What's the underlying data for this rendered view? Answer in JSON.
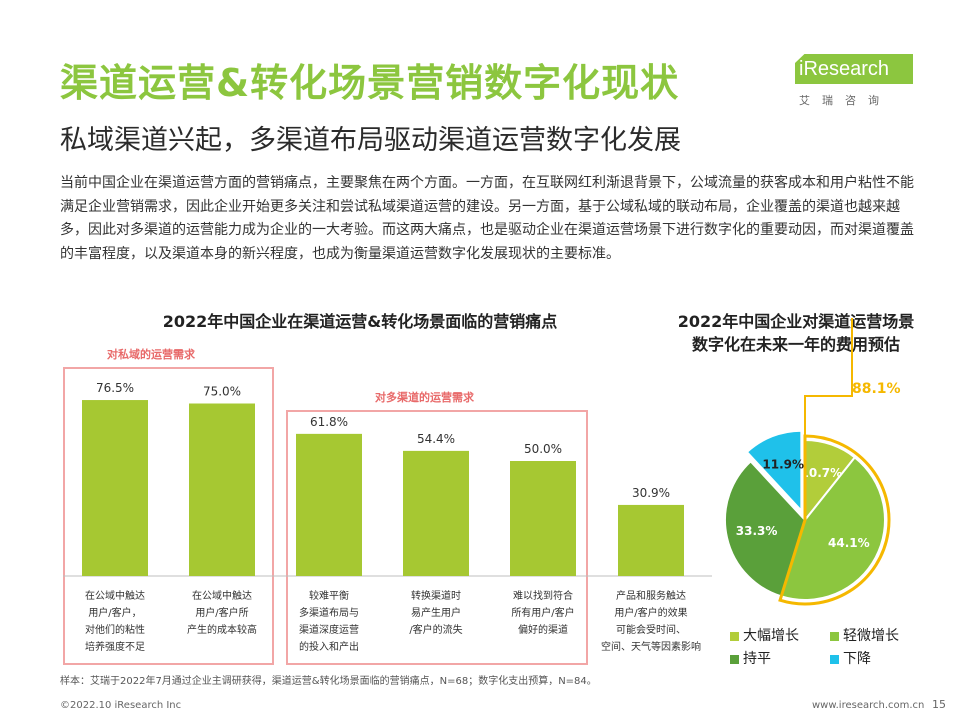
{
  "header": {
    "title": "渠道运营&转化场景营销数字化现状",
    "subtitle": "私域渠道兴起，多渠道布局驱动渠道运营数字化发展",
    "logo_text": "iResearch",
    "logo_cn": "艾瑞咨询"
  },
  "paragraph": "当前中国企业在渠道运营方面的营销痛点，主要聚焦在两个方面。一方面，在互联网红利渐退背景下，公域流量的获客成本和用户粘性不能满足企业营销需求，因此企业开始更多关注和尝试私域渠道运营的建设。另一方面，基于公域私域的联动布局，企业覆盖的渠道也越来越多，因此对多渠道的运营能力成为企业的一大考验。而这两大痛点，也是驱动企业在渠道运营场景下进行数字化的重要动因，而对渠道覆盖的丰富程度，以及渠道本身的新兴程度，也成为衡量渠道运营数字化发展现状的主要标准。",
  "chart_data": [
    {
      "type": "bar",
      "title": "2022年中国企业在渠道运营&转化场景面临的营销痛点",
      "categories": [
        "在公域中触达\n用户/客户，\n对他们的粘性\n培养强度不足",
        "在公域中触达\n用户/客户所\n产生的成本较高",
        "较难平衡\n多渠道布局与\n渠道深度运营\n的投入和产出",
        "转换渠道时\n易产生用户\n/客户的流失",
        "难以找到符合\n所有用户/客户\n偏好的渠道",
        "产品和服务触达\n用户/客户的效果\n可能会受时间、\n空间、天气等因素影响"
      ],
      "values": [
        76.5,
        75.0,
        61.8,
        54.4,
        50.0,
        30.9
      ],
      "value_labels": [
        "76.5%",
        "75.0%",
        "61.8%",
        "54.4%",
        "50.0%",
        "30.9%"
      ],
      "groups": [
        {
          "label": "对私域的运营需求",
          "members": [
            0,
            1
          ]
        },
        {
          "label": "对多渠道的运营需求",
          "members": [
            2,
            3,
            4
          ]
        }
      ],
      "ylim": [
        0,
        100
      ],
      "bar_color": "#a6c832"
    },
    {
      "type": "pie",
      "title": "2022年中国企业对渠道运营场景数字化在未来一年的费用预估",
      "slices": [
        {
          "name": "大幅增长",
          "value": 10.7,
          "label": "10.7%",
          "color": "#b2cd3a"
        },
        {
          "name": "轻微增长",
          "value": 44.1,
          "label": "44.1%",
          "color": "#8cc63f"
        },
        {
          "name": "持平",
          "value": 33.3,
          "label": "33.3%",
          "color": "#5aa03a"
        },
        {
          "name": "下降",
          "value": 11.9,
          "label": "11.9%",
          "color": "#1fc1ea"
        }
      ],
      "highlight": "88.1%",
      "highlight_color": "#f5b800"
    }
  ],
  "footnote": "样本：艾瑞于2022年7月通过企业主调研获得，渠道运营&转化场景面临的营销痛点，N=68；数字化支出预算，N=84。",
  "footer": {
    "copyright": "©2022.10 iResearch Inc",
    "url": "www.iresearch.com.cn",
    "page": "15"
  }
}
